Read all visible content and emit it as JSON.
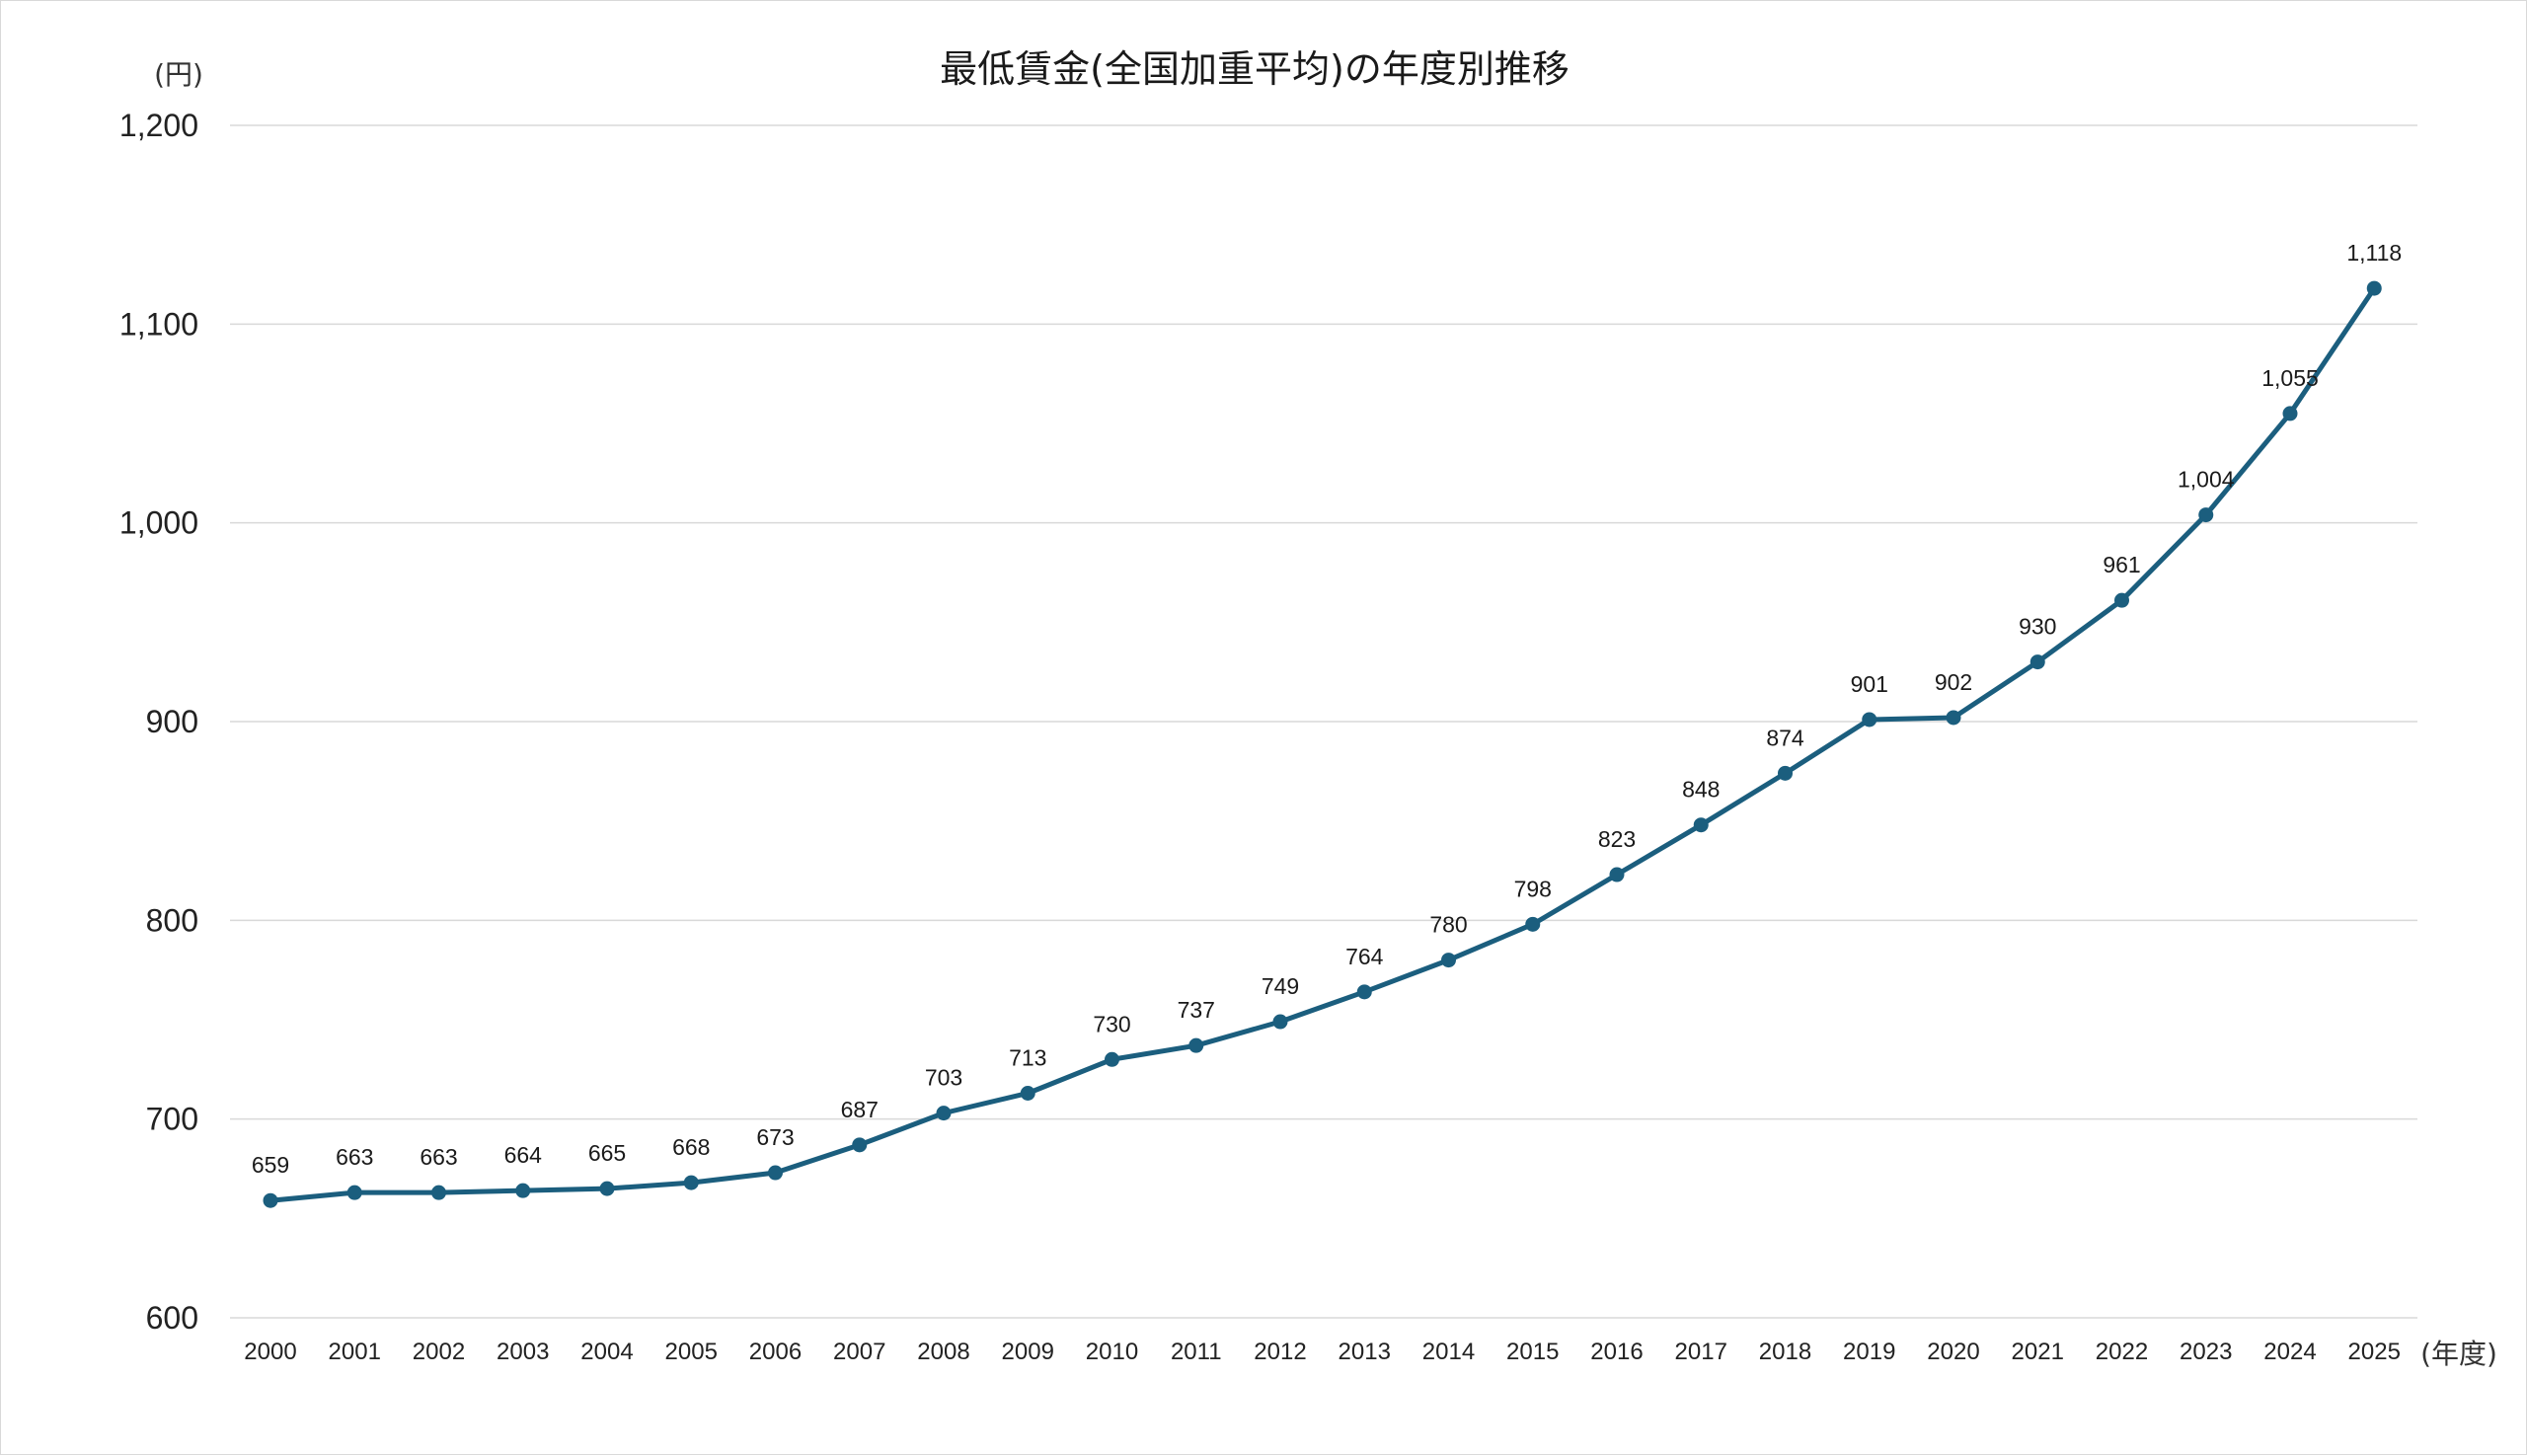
{
  "chart_data": {
    "type": "line",
    "title": "最低賃金(全国加重平均)の年度別推移",
    "ylabel": "(円)",
    "xlabel": "(年度)",
    "ylim": [
      600,
      1200
    ],
    "yticks": [
      600,
      700,
      800,
      900,
      1000,
      1100,
      1200
    ],
    "ytick_labels": [
      "600",
      "700",
      "800",
      "900",
      "1,000",
      "1,100",
      "1,200"
    ],
    "grid": true,
    "colors": {
      "series": "#1b5e7e",
      "grid": "#d9d9d9"
    },
    "x": [
      "2000",
      "2001",
      "2002",
      "2003",
      "2004",
      "2005",
      "2006",
      "2007",
      "2008",
      "2009",
      "2010",
      "2011",
      "2012",
      "2013",
      "2014",
      "2015",
      "2016",
      "2017",
      "2018",
      "2019",
      "2020",
      "2021",
      "2022",
      "2023",
      "2024",
      "2025"
    ],
    "series": [
      {
        "values": [
          659,
          663,
          663,
          664,
          665,
          668,
          673,
          687,
          703,
          713,
          730,
          737,
          749,
          764,
          780,
          798,
          823,
          848,
          874,
          901,
          902,
          930,
          961,
          1004,
          1055,
          1118
        ],
        "labels": [
          "659",
          "663",
          "663",
          "664",
          "665",
          "668",
          "673",
          "687",
          "703",
          "713",
          "730",
          "737",
          "749",
          "764",
          "780",
          "798",
          "823",
          "848",
          "874",
          "901",
          "902",
          "930",
          "961",
          "1,004",
          "1,055",
          "1,118"
        ]
      }
    ]
  }
}
